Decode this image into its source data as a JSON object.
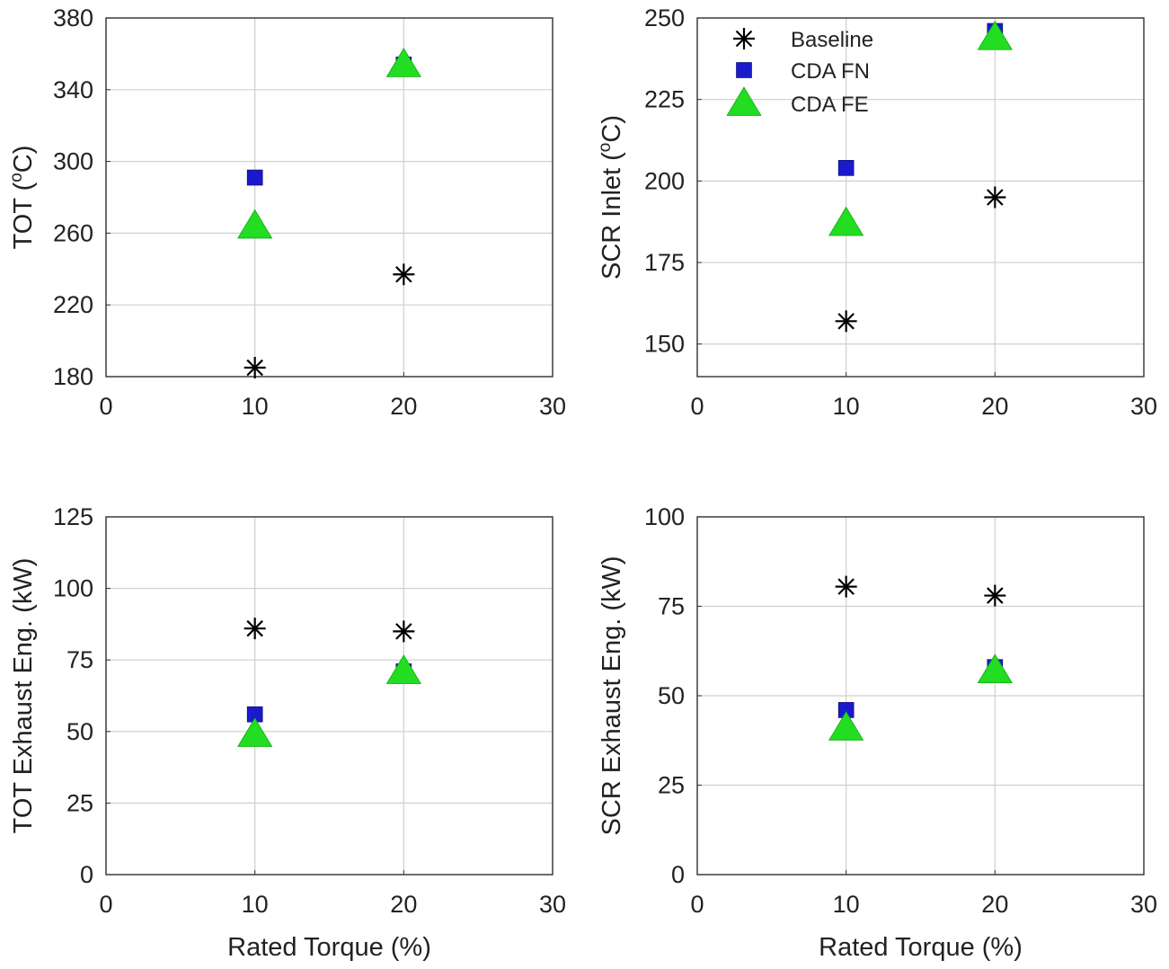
{
  "chart_data": [
    {
      "type": "scatter",
      "xlabel": "",
      "ylabel": "TOT (°C)",
      "ylabel_parts": [
        "TOT (",
        "o",
        "C)"
      ],
      "xlim": [
        0,
        30
      ],
      "ylim": [
        180,
        380
      ],
      "xticks": [
        "0",
        "10",
        "20",
        "30"
      ],
      "yticks": [
        "180",
        "220",
        "260",
        "300",
        "340",
        "380"
      ],
      "grid": true,
      "series": [
        {
          "name": "Baseline",
          "marker": "asterisk",
          "color": "#000000",
          "x": [
            10,
            20
          ],
          "y": [
            185,
            237
          ]
        },
        {
          "name": "CDA FN",
          "marker": "square",
          "color": "#1a1acc",
          "x": [
            10,
            20
          ],
          "y": [
            291,
            354
          ]
        },
        {
          "name": "CDA FE",
          "marker": "triangle",
          "color": "#22dd22",
          "x": [
            10,
            20
          ],
          "y": [
            264,
            354
          ]
        }
      ]
    },
    {
      "type": "scatter",
      "xlabel": "",
      "ylabel": "SCR Inlet (°C)",
      "ylabel_parts": [
        "SCR Inlet (",
        "o",
        "C)"
      ],
      "xlim": [
        0,
        30
      ],
      "ylim": [
        140,
        250
      ],
      "xticks": [
        "0",
        "10",
        "20",
        "30"
      ],
      "yticks": [
        "150",
        "175",
        "200",
        "225",
        "250"
      ],
      "ytick_values": [
        150,
        175,
        200,
        225,
        250
      ],
      "grid": true,
      "legend": {
        "placement": "top-left",
        "entries": [
          "Baseline",
          "CDA FN",
          "CDA FE"
        ]
      },
      "series": [
        {
          "name": "Baseline",
          "marker": "asterisk",
          "color": "#000000",
          "x": [
            10,
            20
          ],
          "y": [
            157,
            195
          ]
        },
        {
          "name": "CDA FN",
          "marker": "square",
          "color": "#1a1acc",
          "x": [
            10,
            20
          ],
          "y": [
            204,
            246
          ]
        },
        {
          "name": "CDA FE",
          "marker": "triangle",
          "color": "#22dd22",
          "x": [
            10,
            20
          ],
          "y": [
            187,
            244
          ]
        }
      ]
    },
    {
      "type": "scatter",
      "xlabel": "Rated Torque (%)",
      "ylabel": "TOT Exhaust Eng. (kW)",
      "xlim": [
        0,
        30
      ],
      "ylim": [
        0,
        125
      ],
      "xticks": [
        "0",
        "10",
        "20",
        "30"
      ],
      "yticks": [
        "0",
        "25",
        "50",
        "75",
        "100",
        "125"
      ],
      "grid": true,
      "series": [
        {
          "name": "Baseline",
          "marker": "asterisk",
          "color": "#000000",
          "x": [
            10,
            20
          ],
          "y": [
            86,
            85
          ]
        },
        {
          "name": "CDA FN",
          "marker": "square",
          "color": "#1a1acc",
          "x": [
            10,
            20
          ],
          "y": [
            56,
            71
          ]
        },
        {
          "name": "CDA FE",
          "marker": "triangle",
          "color": "#22dd22",
          "x": [
            10,
            20
          ],
          "y": [
            49,
            71
          ]
        }
      ]
    },
    {
      "type": "scatter",
      "xlabel": "Rated Torque (%)",
      "ylabel": "SCR Exhaust Eng. (kW)",
      "xlim": [
        0,
        30
      ],
      "ylim": [
        0,
        100
      ],
      "xticks": [
        "0",
        "10",
        "20",
        "30"
      ],
      "yticks": [
        "0",
        "25",
        "50",
        "75",
        "100"
      ],
      "grid": true,
      "series": [
        {
          "name": "Baseline",
          "marker": "asterisk",
          "color": "#000000",
          "x": [
            10,
            20
          ],
          "y": [
            80.5,
            78
          ]
        },
        {
          "name": "CDA FN",
          "marker": "square",
          "color": "#1a1acc",
          "x": [
            10,
            20
          ],
          "y": [
            46,
            58
          ]
        },
        {
          "name": "CDA FE",
          "marker": "triangle",
          "color": "#22dd22",
          "x": [
            10,
            20
          ],
          "y": [
            41,
            57
          ]
        }
      ]
    }
  ]
}
